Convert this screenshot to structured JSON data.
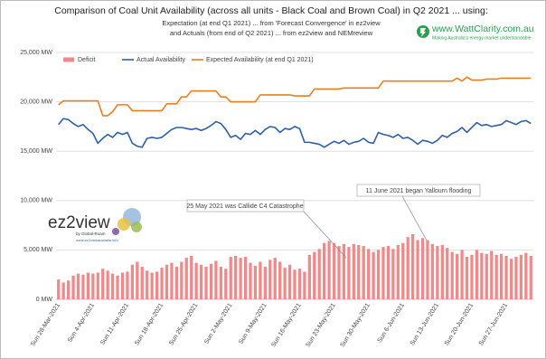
{
  "chart_data": {
    "type": "bar-line",
    "title": "Comparison of Coal Unit Availability (across all units - Black Coal and Brown Coal) in Q2 2021 ... using:",
    "subtitle": [
      "Expectation (at end Q1 2021) ... from 'Forecast Convergence' in ez2view",
      "and Actuals (from end of Q2 2021) ... from ez2view and NEMreview"
    ],
    "annotations": [
      "25 May 2021 was Callide C4 Catastrophe",
      "11 June 2021 began Yallourn flooding"
    ],
    "categories": [
      "Sun 28-Mar-2021",
      null,
      null,
      null,
      null,
      null,
      null,
      "Sun 4-Apr-2021",
      null,
      null,
      null,
      null,
      null,
      null,
      "Sun 11-Apr-2021",
      null,
      null,
      null,
      null,
      null,
      null,
      "Sun 18-Apr-2021",
      null,
      null,
      null,
      null,
      null,
      null,
      "Sun 25-Apr-2021",
      null,
      null,
      null,
      null,
      null,
      null,
      "Sun 2-May-2021",
      null,
      null,
      null,
      null,
      null,
      null,
      "Sun 9-May-2021",
      null,
      null,
      null,
      null,
      null,
      null,
      "Sun 16-May-2021",
      null,
      null,
      null,
      null,
      null,
      null,
      "Sun 23-May-2021",
      null,
      null,
      null,
      null,
      null,
      null,
      "Sun 30-May-2021",
      null,
      null,
      null,
      null,
      null,
      null,
      "Sun 6-Jun-2021",
      null,
      null,
      null,
      null,
      null,
      null,
      "Sun 13-Jun-2021",
      null,
      null,
      null,
      null,
      null,
      null,
      "Sun 20-Jun-2021",
      null,
      null,
      null,
      null,
      null,
      null,
      "Sun 27-Jun-2021",
      null,
      null,
      null,
      null,
      null
    ],
    "series": [
      {
        "name": "Deficit",
        "kind": "bar",
        "color": "#f08a8a",
        "values": [
          2000,
          1700,
          1900,
          2400,
          2600,
          2500,
          2700,
          2600,
          2700,
          3100,
          2900,
          2600,
          2400,
          2700,
          2800,
          3500,
          3800,
          3300,
          2900,
          2700,
          2800,
          3200,
          3500,
          3700,
          3300,
          3800,
          4200,
          4400,
          3700,
          3500,
          3300,
          3600,
          3900,
          3300,
          3100,
          4300,
          4400,
          4200,
          4300,
          3700,
          3400,
          3800,
          3300,
          4000,
          4200,
          3800,
          3200,
          3500,
          3000,
          3100,
          2800,
          4500,
          4800,
          5100,
          5700,
          5900,
          5700,
          5400,
          5600,
          5300,
          5600,
          5500,
          5400,
          5100,
          4800,
          5000,
          5300,
          5400,
          5100,
          5500,
          5700,
          6300,
          6600,
          6000,
          6200,
          6000,
          5600,
          5400,
          5500,
          5200,
          4800,
          4600,
          5000,
          4300,
          4500,
          5000,
          4700,
          4600,
          4900,
          4500,
          4600,
          4400,
          4100,
          4300,
          4500,
          4700,
          4400
        ]
      },
      {
        "name": "Actual Availability",
        "kind": "line",
        "color": "#2e5fa8",
        "values": [
          17700,
          18300,
          18200,
          17800,
          17500,
          17700,
          17200,
          16800,
          15800,
          16300,
          16700,
          16400,
          16900,
          16700,
          16900,
          15800,
          15500,
          15400,
          16300,
          16400,
          16300,
          16400,
          16800,
          17200,
          17400,
          17400,
          17300,
          17200,
          17300,
          17100,
          17300,
          17600,
          18000,
          17800,
          17200,
          16400,
          16600,
          16200,
          16800,
          16700,
          17100,
          16700,
          17200,
          17500,
          17400,
          16900,
          17300,
          17200,
          17500,
          17300,
          15900,
          15900,
          15800,
          15700,
          15400,
          15700,
          16000,
          15800,
          16100,
          15700,
          15900,
          16000,
          16300,
          15900,
          15800,
          16900,
          16700,
          16600,
          16400,
          16700,
          16300,
          16400,
          16100,
          15700,
          16100,
          16000,
          15800,
          16100,
          16600,
          16400,
          16800,
          17000,
          17400,
          16900,
          17400,
          17900,
          17600,
          17700,
          17500,
          17600,
          17700,
          18100,
          17900,
          17700,
          18000,
          18100,
          17800
        ]
      },
      {
        "name": "Expected Availability (at end Q1 2021)",
        "kind": "line",
        "color": "#e8801f",
        "values": [
          19700,
          20100,
          20100,
          20100,
          20100,
          20100,
          20100,
          20100,
          20100,
          18600,
          18600,
          19000,
          19700,
          19700,
          19700,
          19100,
          19100,
          19100,
          19100,
          19100,
          19100,
          19100,
          19800,
          19800,
          19800,
          20500,
          20500,
          21100,
          21100,
          21100,
          21100,
          21100,
          21100,
          20500,
          20500,
          20000,
          20000,
          20000,
          20000,
          20000,
          20000,
          20700,
          20700,
          20700,
          20700,
          20700,
          20700,
          20700,
          20600,
          20600,
          20600,
          20600,
          21300,
          21300,
          21300,
          21300,
          21300,
          21300,
          21400,
          21400,
          21400,
          21400,
          21400,
          21400,
          21400,
          21400,
          22100,
          22100,
          22100,
          22100,
          22100,
          22100,
          22100,
          22100,
          22100,
          22100,
          22100,
          22100,
          22100,
          22100,
          22100,
          22400,
          22100,
          22500,
          22200,
          22200,
          22200,
          22300,
          22300,
          22300,
          22400,
          22400,
          22400,
          22400,
          22400,
          22400,
          22400
        ]
      }
    ],
    "ylim": [
      0,
      25000
    ],
    "yticks": [
      {
        "value": 0,
        "label": "0 MW"
      },
      {
        "value": 5000,
        "label": "5,000 MW"
      },
      {
        "value": 10000,
        "label": "10,000 MW"
      },
      {
        "value": 15000,
        "label": "15,000 MW"
      },
      {
        "value": 20000,
        "label": "20,000 MW"
      },
      {
        "value": 25000,
        "label": "25,000 MW"
      }
    ],
    "grid": true,
    "legend": "top-left"
  },
  "logos": {
    "wattclarity": "www.WattClarity.com.au",
    "wattclarity_tagline": "Making Australia's energy market understandable",
    "ez2view": "ez2view",
    "ez2view_by": "by Global-Roam",
    "ez2view_url": "www.ez2viewaustralia.info"
  }
}
